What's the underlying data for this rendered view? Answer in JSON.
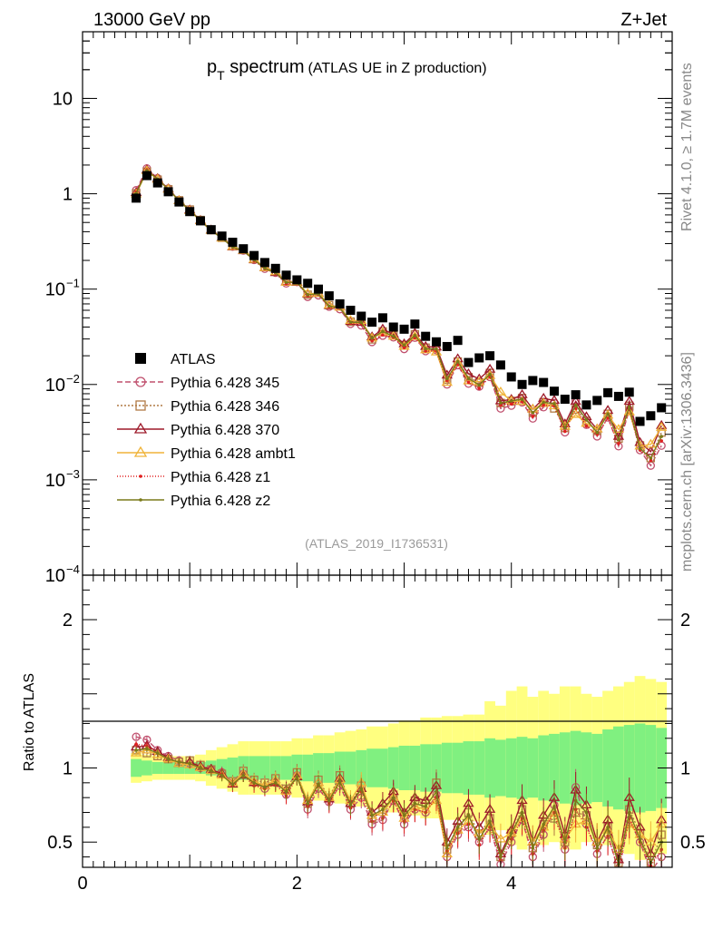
{
  "header": {
    "left": "13000 GeV pp",
    "right": "Z+Jet"
  },
  "side": {
    "rivet": "Rivet 4.1.0, ≥ 1.7M events",
    "mcplots": "mcplots.cern.ch [arXiv:1306.3436]"
  },
  "chart_data": {
    "type": "scatter",
    "title": {
      "main": "p",
      "sub": "T",
      "rest": " spectrum",
      "note": "(ATLAS UE in Z production)"
    },
    "analysis_id": "(ATLAS_2019_I1736531)",
    "xlabel": "",
    "ylabel_ratio": "Ratio to ATLAS",
    "xlim": [
      0,
      5.5
    ],
    "ylim": [
      0.0001,
      50
    ],
    "yscale": "log",
    "ratio_ylim": [
      0.33,
      2.3
    ],
    "x_ticks": [
      0,
      2,
      4
    ],
    "y_ticks": [
      {
        "v": 10,
        "label": "10",
        "sup": ""
      },
      {
        "v": 1,
        "label": "1",
        "sup": ""
      },
      {
        "v": 0.1,
        "label": "10",
        "sup": "−1"
      },
      {
        "v": 0.01,
        "label": "10",
        "sup": "−2"
      },
      {
        "v": 0.001,
        "label": "10",
        "sup": "−3"
      },
      {
        "v": 0.0001,
        "label": "10",
        "sup": "−4"
      }
    ],
    "ratio_ticks": [
      {
        "v": 2,
        "label": "2"
      },
      {
        "v": 1,
        "label": "1"
      },
      {
        "v": 0.5,
        "label": "0.5"
      }
    ],
    "x": [
      0.5,
      0.6,
      0.7,
      0.8,
      0.9,
      1.0,
      1.1,
      1.2,
      1.3,
      1.4,
      1.5,
      1.6,
      1.7,
      1.8,
      1.9,
      2.0,
      2.1,
      2.2,
      2.3,
      2.4,
      2.5,
      2.6,
      2.7,
      2.8,
      2.9,
      3.0,
      3.1,
      3.2,
      3.3,
      3.4,
      3.5,
      3.6,
      3.7,
      3.8,
      3.9,
      4.0,
      4.1,
      4.2,
      4.3,
      4.4,
      4.5,
      4.6,
      4.7,
      4.8,
      4.9,
      5.0,
      5.1,
      5.2,
      5.3,
      5.4
    ],
    "data_values": [
      0.9,
      1.55,
      1.3,
      1.05,
      0.82,
      0.65,
      0.52,
      0.42,
      0.36,
      0.31,
      0.265,
      0.225,
      0.19,
      0.165,
      0.14,
      0.125,
      0.115,
      0.1,
      0.085,
      0.07,
      0.06,
      0.052,
      0.045,
      0.05,
      0.04,
      0.038,
      0.043,
      0.032,
      0.028,
      0.025,
      0.029,
      0.017,
      0.019,
      0.02,
      0.016,
      0.012,
      0.01,
      0.011,
      0.0105,
      0.0085,
      0.007,
      0.0078,
      0.0061,
      0.0068,
      0.0082,
      0.0075,
      0.0083,
      0.0041,
      0.0047,
      0.0057
    ],
    "ratio_band_inner": [
      0.06,
      0.05,
      0.04,
      0.04,
      0.04,
      0.04,
      0.04,
      0.05,
      0.06,
      0.07,
      0.08,
      0.08,
      0.08,
      0.08,
      0.08,
      0.09,
      0.09,
      0.1,
      0.1,
      0.11,
      0.11,
      0.12,
      0.13,
      0.13,
      0.14,
      0.15,
      0.15,
      0.16,
      0.16,
      0.17,
      0.17,
      0.18,
      0.18,
      0.2,
      0.19,
      0.2,
      0.21,
      0.2,
      0.22,
      0.23,
      0.24,
      0.25,
      0.24,
      0.23,
      0.26,
      0.28,
      0.29,
      0.3,
      0.29,
      0.27
    ],
    "ratio_band_outer": [
      0.1,
      0.09,
      0.08,
      0.08,
      0.08,
      0.08,
      0.09,
      0.12,
      0.14,
      0.16,
      0.18,
      0.18,
      0.18,
      0.18,
      0.18,
      0.2,
      0.2,
      0.22,
      0.22,
      0.24,
      0.25,
      0.26,
      0.28,
      0.28,
      0.3,
      0.32,
      0.32,
      0.34,
      0.34,
      0.35,
      0.35,
      0.36,
      0.36,
      0.45,
      0.42,
      0.52,
      0.55,
      0.48,
      0.52,
      0.5,
      0.55,
      0.55,
      0.5,
      0.48,
      0.52,
      0.55,
      0.58,
      0.62,
      0.6,
      0.58
    ],
    "legend": {
      "data_label": "ATLAS",
      "placement": "bottom-left"
    },
    "series": [
      {
        "name": "Pythia 6.428 345",
        "color": "#c0506e",
        "marker": "circle",
        "dash": "6,3",
        "ratio": [
          1.21,
          1.19,
          1.12,
          1.08,
          1.05,
          1.03,
          1.0,
          0.99,
          0.97,
          0.9,
          0.96,
          0.9,
          0.86,
          0.9,
          0.82,
          0.95,
          0.72,
          0.86,
          0.77,
          0.88,
          0.72,
          0.8,
          0.62,
          0.65,
          0.78,
          0.62,
          0.72,
          0.7,
          0.82,
          0.4,
          0.55,
          0.6,
          0.5,
          0.6,
          0.35,
          0.5,
          0.65,
          0.4,
          0.55,
          0.75,
          0.45,
          0.87,
          0.62,
          0.42,
          0.55,
          0.3,
          0.65,
          0.5,
          0.3,
          0.4
        ]
      },
      {
        "name": "Pythia 6.428 346",
        "color": "#b07a45",
        "marker": "square",
        "dash": "2,2",
        "ratio": [
          1.12,
          1.1,
          1.08,
          1.06,
          1.04,
          1.05,
          1.02,
          0.99,
          0.96,
          0.91,
          0.98,
          0.92,
          0.9,
          0.93,
          0.86,
          0.97,
          0.76,
          0.92,
          0.8,
          0.95,
          0.76,
          0.88,
          0.66,
          0.72,
          0.82,
          0.68,
          0.78,
          0.76,
          0.9,
          0.45,
          0.6,
          0.7,
          0.55,
          0.66,
          0.4,
          0.56,
          0.72,
          0.46,
          0.62,
          0.66,
          0.5,
          0.7,
          0.68,
          0.48,
          0.6,
          0.36,
          0.72,
          0.56,
          0.36,
          0.55
        ]
      },
      {
        "name": "Pythia 6.428 370",
        "color": "#9e1a2a",
        "marker": "triangle",
        "dash": "",
        "ratio": [
          1.14,
          1.15,
          1.11,
          1.07,
          1.03,
          1.04,
          1.01,
          0.99,
          0.96,
          0.89,
          0.95,
          0.9,
          0.88,
          0.9,
          0.85,
          0.94,
          0.77,
          0.9,
          0.79,
          0.93,
          0.76,
          0.86,
          0.7,
          0.76,
          0.84,
          0.7,
          0.8,
          0.78,
          0.88,
          0.5,
          0.64,
          0.76,
          0.6,
          0.72,
          0.42,
          0.58,
          0.78,
          0.5,
          0.68,
          0.8,
          0.55,
          0.85,
          0.75,
          0.5,
          0.65,
          0.38,
          0.8,
          0.6,
          0.42,
          0.65
        ]
      },
      {
        "name": "Pythia 6.428 ambt1",
        "color": "#f0b43a",
        "marker": "triangle",
        "dash": "",
        "ratio": [
          1.1,
          1.12,
          1.09,
          1.06,
          1.03,
          1.02,
          1.0,
          0.98,
          0.95,
          0.9,
          0.96,
          0.91,
          0.88,
          0.92,
          0.84,
          0.95,
          0.78,
          0.9,
          0.8,
          0.92,
          0.78,
          0.9,
          0.68,
          0.7,
          0.8,
          0.66,
          0.74,
          0.72,
          0.78,
          0.42,
          0.58,
          0.64,
          0.56,
          0.62,
          0.52,
          0.56,
          0.66,
          0.5,
          0.6,
          0.7,
          0.52,
          0.62,
          0.64,
          0.5,
          0.58,
          0.45,
          0.62,
          0.55,
          0.5,
          0.62
        ]
      },
      {
        "name": "Pythia 6.428 z1",
        "color": "#e02020",
        "marker": "dot",
        "dash": "1,2",
        "ratio": [
          1.16,
          1.15,
          1.1,
          1.06,
          1.04,
          1.03,
          1.0,
          0.98,
          0.96,
          0.88,
          0.95,
          0.88,
          0.86,
          0.89,
          0.81,
          0.94,
          0.74,
          0.88,
          0.76,
          0.9,
          0.73,
          0.84,
          0.64,
          0.66,
          0.78,
          0.64,
          0.72,
          0.7,
          0.8,
          0.44,
          0.56,
          0.62,
          0.48,
          0.6,
          0.38,
          0.52,
          0.66,
          0.42,
          0.58,
          0.7,
          0.46,
          0.72,
          0.6,
          0.44,
          0.54,
          0.32,
          0.66,
          0.5,
          0.34,
          0.45
        ]
      },
      {
        "name": "Pythia 6.428 z2",
        "color": "#7a7a1a",
        "marker": "dot",
        "dash": "",
        "ratio": [
          1.12,
          1.13,
          1.1,
          1.06,
          1.04,
          1.03,
          1.0,
          0.98,
          0.95,
          0.89,
          0.95,
          0.9,
          0.87,
          0.9,
          0.84,
          0.94,
          0.76,
          0.89,
          0.78,
          0.91,
          0.75,
          0.86,
          0.68,
          0.72,
          0.8,
          0.68,
          0.76,
          0.74,
          0.84,
          0.46,
          0.6,
          0.68,
          0.52,
          0.64,
          0.4,
          0.56,
          0.7,
          0.46,
          0.62,
          0.74,
          0.5,
          0.78,
          0.7,
          0.46,
          0.6,
          0.35,
          0.7,
          0.52,
          0.36,
          0.5
        ]
      }
    ]
  }
}
